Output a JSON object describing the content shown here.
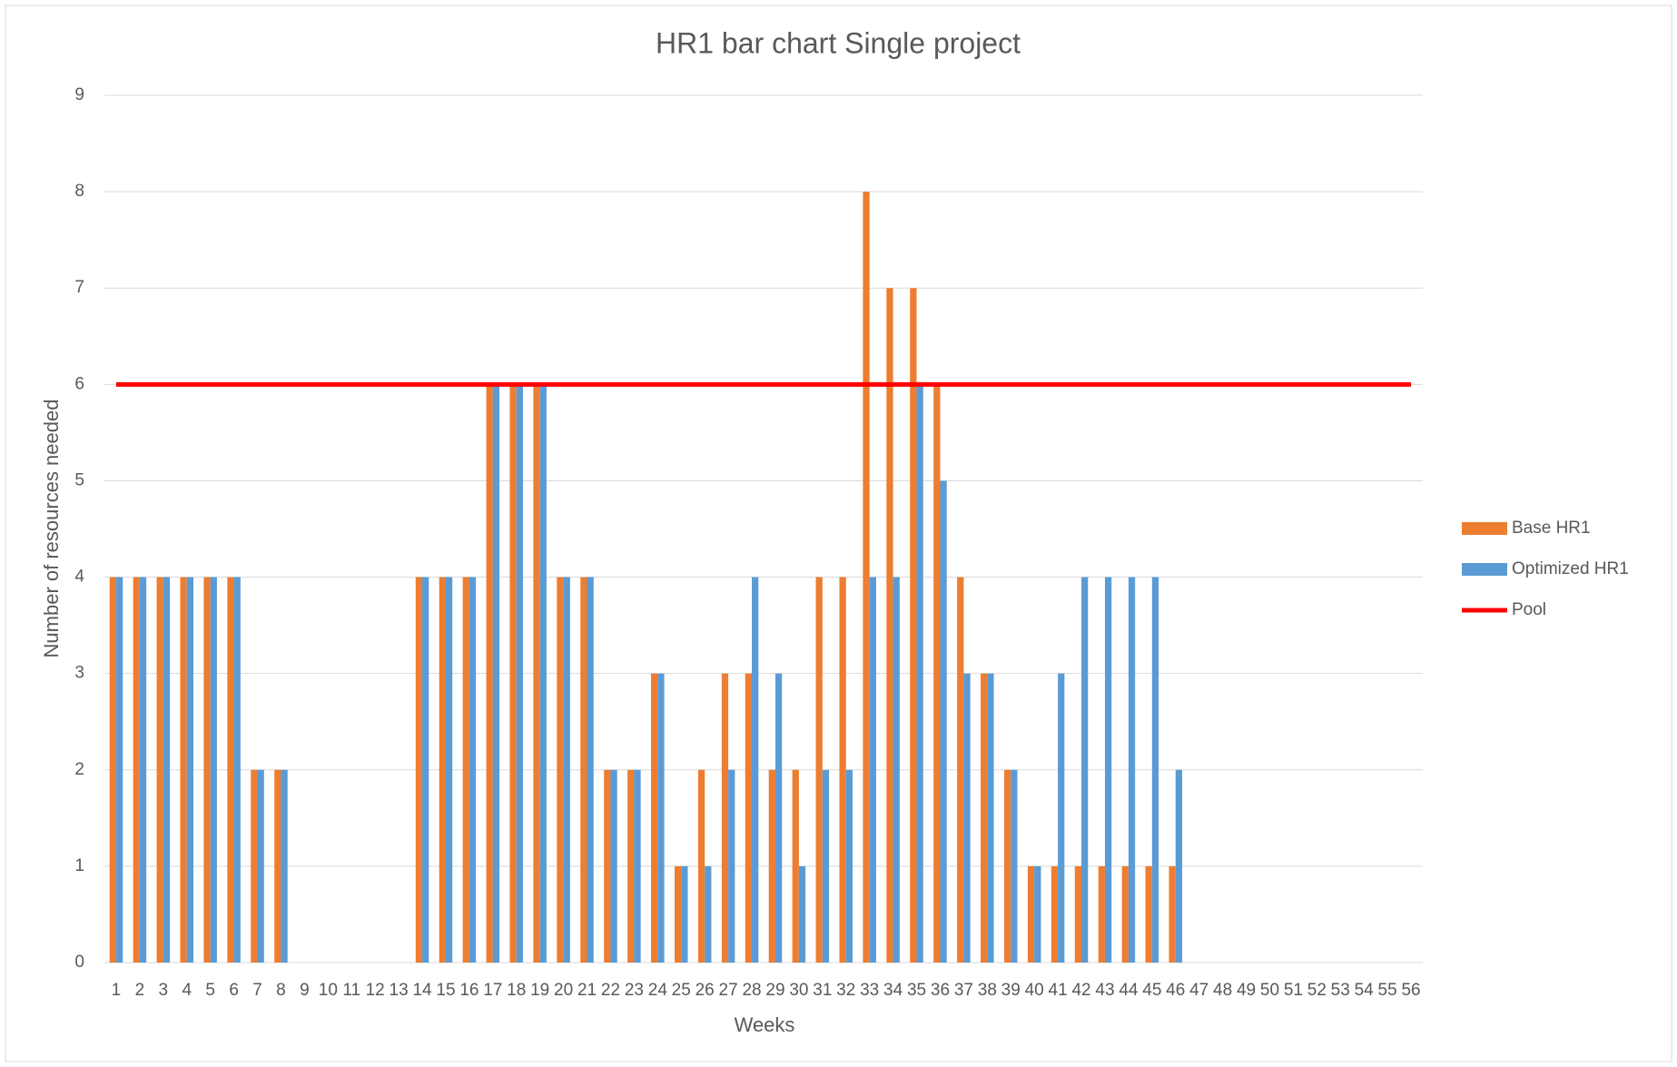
{
  "chart_data": {
    "type": "bar",
    "title": "HR1 bar chart Single project",
    "x_label": "Weeks",
    "y_label": "Number of resources needed",
    "categories": [
      "1",
      "2",
      "3",
      "4",
      "5",
      "6",
      "7",
      "8",
      "9",
      "10",
      "11",
      "12",
      "13",
      "14",
      "15",
      "16",
      "17",
      "18",
      "19",
      "20",
      "21",
      "22",
      "23",
      "24",
      "25",
      "26",
      "27",
      "28",
      "29",
      "30",
      "31",
      "32",
      "33",
      "34",
      "35",
      "36",
      "37",
      "38",
      "39",
      "40",
      "41",
      "42",
      "43",
      "44",
      "45",
      "46",
      "47",
      "48",
      "49",
      "50",
      "51",
      "52",
      "53",
      "54",
      "55",
      "56"
    ],
    "series": [
      {
        "name": "Base HR1",
        "color": "#ed7d31",
        "type": "bar",
        "values": [
          4,
          4,
          4,
          4,
          4,
          4,
          2,
          2,
          0,
          0,
          0,
          0,
          0,
          4,
          4,
          4,
          6,
          6,
          6,
          4,
          4,
          2,
          2,
          3,
          1,
          2,
          3,
          3,
          2,
          2,
          4,
          4,
          8,
          7,
          7,
          6,
          4,
          3,
          2,
          1,
          1,
          1,
          1,
          1,
          1,
          1,
          0,
          0,
          0,
          0,
          0,
          0,
          0,
          0,
          0,
          0
        ]
      },
      {
        "name": "Optimized HR1",
        "color": "#5b9bd5",
        "type": "bar",
        "values": [
          4,
          4,
          4,
          4,
          4,
          4,
          2,
          2,
          0,
          0,
          0,
          0,
          0,
          4,
          4,
          4,
          6,
          6,
          6,
          4,
          4,
          2,
          2,
          3,
          1,
          1,
          2,
          4,
          3,
          1,
          2,
          2,
          4,
          4,
          6,
          5,
          3,
          3,
          2,
          1,
          3,
          4,
          4,
          4,
          4,
          2,
          0,
          0,
          0,
          0,
          0,
          0,
          0,
          0,
          0,
          0
        ]
      },
      {
        "name": "Pool",
        "color": "#ff0000",
        "type": "line",
        "values": [
          6,
          6,
          6,
          6,
          6,
          6,
          6,
          6,
          6,
          6,
          6,
          6,
          6,
          6,
          6,
          6,
          6,
          6,
          6,
          6,
          6,
          6,
          6,
          6,
          6,
          6,
          6,
          6,
          6,
          6,
          6,
          6,
          6,
          6,
          6,
          6,
          6,
          6,
          6,
          6,
          6,
          6,
          6,
          6,
          6,
          6,
          6,
          6,
          6,
          6,
          6,
          6,
          6,
          6,
          6,
          6
        ]
      }
    ],
    "ylim": [
      0,
      9
    ],
    "yticks": [
      0,
      1,
      2,
      3,
      4,
      5,
      6,
      7,
      8,
      9
    ],
    "grid": true,
    "legend": "right"
  }
}
